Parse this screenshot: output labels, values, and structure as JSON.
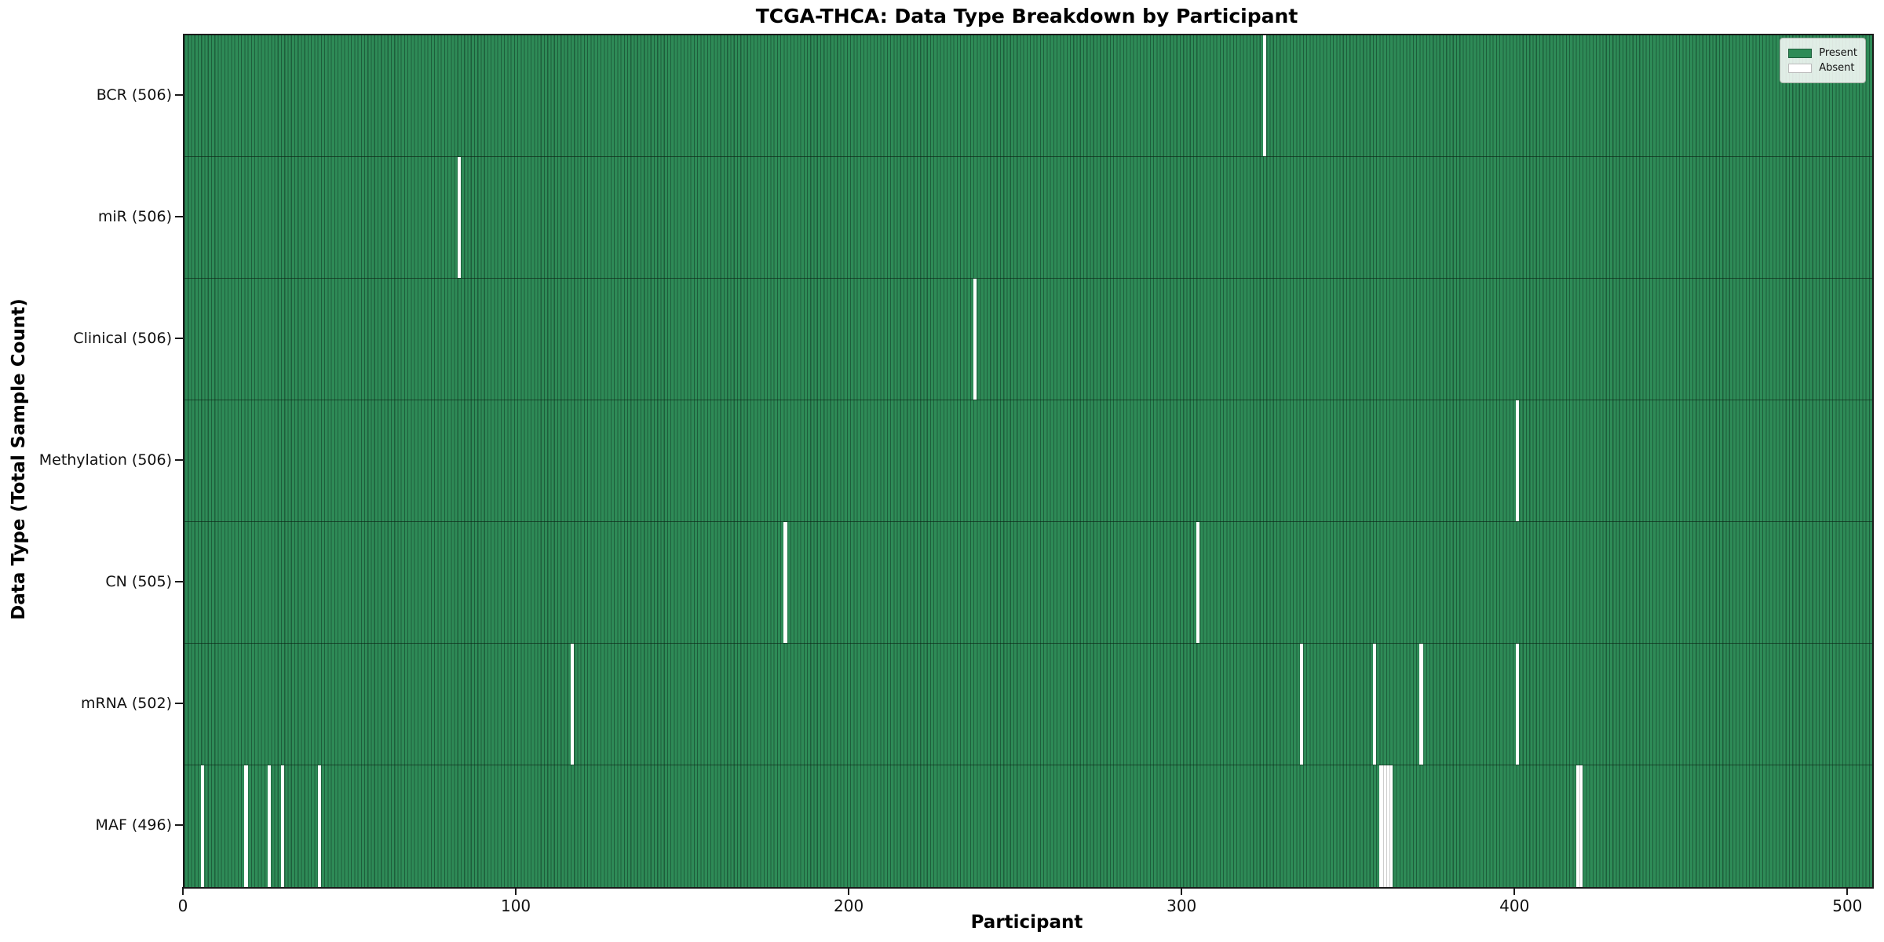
{
  "title": "TCGA-THCA: Data Type Breakdown by Participant",
  "axes": {
    "xlabel": "Participant",
    "ylabel": "Data Type (Total Sample Count)"
  },
  "legend": {
    "items": [
      {
        "label": "Present",
        "color": "#2e8b57"
      },
      {
        "label": "Absent",
        "color": "#ffffff"
      }
    ]
  },
  "chart_data": {
    "type": "heatmap",
    "title": "TCGA-THCA: Data Type Breakdown by Participant",
    "xlabel": "Participant",
    "ylabel": "Data Type (Total Sample Count)",
    "legend_position": "upper right",
    "grid": false,
    "n_participants": 507,
    "xlim": [
      0,
      507
    ],
    "x_ticks": [
      0,
      100,
      200,
      300,
      400,
      500
    ],
    "present_color": "#2e8b57",
    "present_edge_color": "#1d5e3b",
    "absent_color": "#ffffff",
    "cell_values": "present-or-absent per participant per data type",
    "rows": [
      {
        "label": "BCR (506)",
        "data_type": "BCR",
        "present_count": 506,
        "absent_participants": [
          324
        ]
      },
      {
        "label": "miR (506)",
        "data_type": "miR",
        "present_count": 506,
        "absent_participants": [
          82
        ]
      },
      {
        "label": "Clinical (506)",
        "data_type": "Clinical",
        "present_count": 506,
        "absent_participants": [
          237
        ]
      },
      {
        "label": "Methylation (506)",
        "data_type": "Methylation",
        "present_count": 506,
        "absent_participants": [
          400
        ]
      },
      {
        "label": "CN (505)",
        "data_type": "CN",
        "present_count": 505,
        "absent_participants": [
          180,
          304
        ]
      },
      {
        "label": "mRNA (502)",
        "data_type": "mRNA",
        "present_count": 502,
        "absent_participants": [
          116,
          335,
          357,
          371,
          400
        ]
      },
      {
        "label": "MAF (496)",
        "data_type": "MAF",
        "present_count": 496,
        "absent_participants": [
          5,
          18,
          25,
          29,
          40,
          359,
          360,
          361,
          362,
          418,
          419
        ]
      }
    ]
  }
}
